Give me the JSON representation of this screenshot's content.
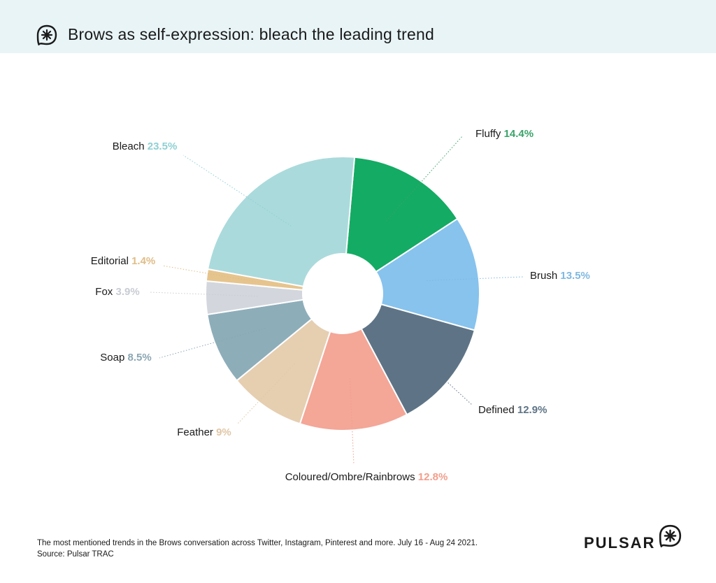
{
  "header": {
    "title": "Brows as self-expression: bleach the leading trend",
    "icon": "pulsar-asterisk-icon"
  },
  "chart_data": {
    "type": "pie",
    "variant": "donut",
    "title": "Brows as self-expression: bleach the leading trend",
    "unit": "%",
    "slices": [
      {
        "label": "Fluffy",
        "value": 14.4,
        "pct_text": "14.4%",
        "color": "#14ab64",
        "label_color": "#3aa36a"
      },
      {
        "label": "Brush",
        "value": 13.5,
        "pct_text": "13.5%",
        "color": "#87c3ed",
        "label_color": "#7fb8e0"
      },
      {
        "label": "Defined",
        "value": 12.9,
        "pct_text": "12.9%",
        "color": "#5e7486",
        "label_color": "#5e7486"
      },
      {
        "label": "Coloured/Ombre/Rainbrows",
        "value": 12.8,
        "pct_text": "12.8%",
        "color": "#f4a697",
        "label_color": "#f29e8c"
      },
      {
        "label": "Feather",
        "value": 9.0,
        "pct_text": "9%",
        "color": "#e6ceb1",
        "label_color": "#e0c7a6"
      },
      {
        "label": "Soap",
        "value": 8.5,
        "pct_text": "8.5%",
        "color": "#8dadb9",
        "label_color": "#8ba7b3"
      },
      {
        "label": "Fox",
        "value": 3.9,
        "pct_text": "3.9%",
        "color": "#d3d6dd",
        "label_color": "#c9ccd3"
      },
      {
        "label": "Editorial",
        "value": 1.4,
        "pct_text": "1.4%",
        "color": "#e6c48d",
        "label_color": "#e0bd86"
      },
      {
        "label": "Bleach",
        "value": 23.5,
        "pct_text": "23.5%",
        "color": "#aadadc",
        "label_color": "#8ed0d3"
      }
    ]
  },
  "footer": {
    "note": "The most mentioned trends in the Brows conversation across Twitter, Instagram, Pinterest and more. July 16 - Aug 24 2021.",
    "source": "Source: Pulsar TRAC"
  },
  "logo": {
    "text": "PULSAR",
    "icon": "pulsar-asterisk-icon"
  }
}
